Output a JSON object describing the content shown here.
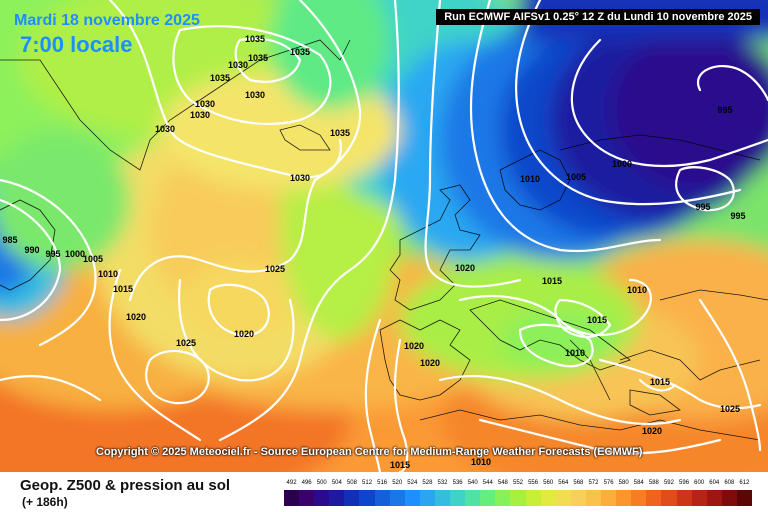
{
  "header": {
    "date": "Mardi 18 novembre 2025",
    "time": "7:00 locale",
    "run": "Run ECMWF AIFSv1 0.25° 12 Z du Lundi 10 novembre 2025"
  },
  "copyright": "Copyright © 2025 Meteociel.fr - Source European Centre for Medium-Range Weather Forecasts (ECMWF)",
  "footer": {
    "title": "Geop. Z500 & pression au sol",
    "subtitle": "(+ 186h)"
  },
  "scale": {
    "ticks": [
      "492",
      "496",
      "500",
      "504",
      "508",
      "512",
      "516",
      "520",
      "524",
      "528",
      "532",
      "536",
      "540",
      "544",
      "548",
      "552",
      "556",
      "560",
      "564",
      "568",
      "572",
      "576",
      "580",
      "584",
      "588",
      "592",
      "596",
      "600",
      "604",
      "608",
      "612"
    ],
    "colors": [
      "#2a004f",
      "#3a006e",
      "#2b0a8c",
      "#1d1aa0",
      "#1230b6",
      "#0c47cb",
      "#1460d8",
      "#1a78e6",
      "#1f8fff",
      "#2aa6f0",
      "#34bde0",
      "#3fd2c9",
      "#4fe2a4",
      "#66ee7a",
      "#86f25a",
      "#a8f040",
      "#c8ee38",
      "#e2ea40",
      "#f2dd52",
      "#f8cf5a",
      "#fac24c",
      "#fbae3c",
      "#fa962e",
      "#f67d24",
      "#ee641e",
      "#e04c1a",
      "#cc3616",
      "#b52414",
      "#9c1612",
      "#7e0c0c",
      "#5c0606"
    ]
  },
  "pressure_labels": [
    "1035",
    "1035",
    "1035",
    "1030",
    "1035",
    "1030",
    "1030",
    "1030",
    "1030",
    "1035",
    "1030",
    "1010",
    "1005",
    "1000",
    "995",
    "995",
    "995",
    "985",
    "990",
    "995",
    "1000",
    "1005",
    "1010",
    "1015",
    "1020",
    "1025",
    "1020",
    "1025",
    "1020",
    "1015",
    "1010",
    "1015",
    "1020",
    "1020",
    "1015",
    "1020",
    "1025",
    "1010",
    "1015",
    "1010"
  ],
  "colors": {
    "contour": "#ffffff",
    "accent_text": "#1f8fff",
    "run_bg": "#000000"
  }
}
